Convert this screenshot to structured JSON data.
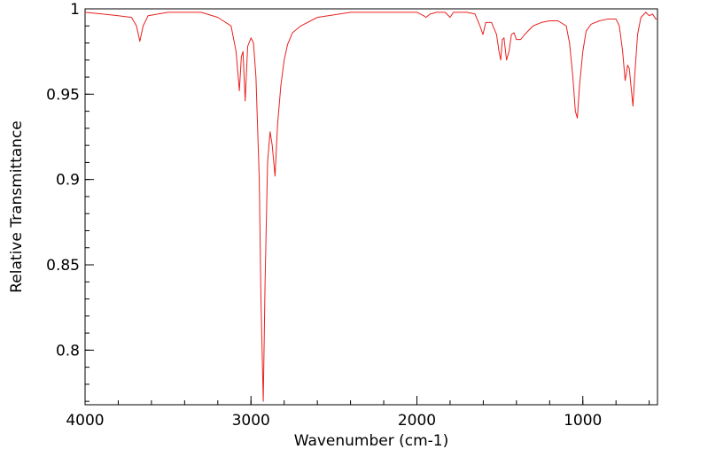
{
  "chart_data": {
    "type": "line",
    "title": "",
    "xlabel": "Wavenumber (cm-1)",
    "ylabel": "Relative Transmittance",
    "xlim": [
      4000,
      550
    ],
    "ylim": [
      0.768,
      1.0
    ],
    "x_reversed": true,
    "grid": false,
    "legend": "none",
    "x_ticks": [
      {
        "value": 4000,
        "label": "4000"
      },
      {
        "value": 3000,
        "label": "3000"
      },
      {
        "value": 2000,
        "label": "2000"
      },
      {
        "value": 1000,
        "label": "1000"
      }
    ],
    "y_ticks": [
      {
        "value": 1.0,
        "label": "1"
      },
      {
        "value": 0.95,
        "label": "0.95"
      },
      {
        "value": 0.9,
        "label": "0.9"
      },
      {
        "value": 0.85,
        "label": "0.85"
      },
      {
        "value": 0.8,
        "label": "0.8"
      }
    ],
    "x_minor_step": 200,
    "y_minor_step": 0.01,
    "line_color": "#e8211f",
    "axis_color": "#000000",
    "series": [
      {
        "name": "",
        "points": [
          [
            4000,
            0.998
          ],
          [
            3900,
            0.997
          ],
          [
            3800,
            0.996
          ],
          [
            3720,
            0.995
          ],
          [
            3690,
            0.99
          ],
          [
            3670,
            0.981
          ],
          [
            3650,
            0.99
          ],
          [
            3620,
            0.996
          ],
          [
            3500,
            0.998
          ],
          [
            3300,
            0.998
          ],
          [
            3200,
            0.995
          ],
          [
            3120,
            0.99
          ],
          [
            3090,
            0.975
          ],
          [
            3070,
            0.952
          ],
          [
            3058,
            0.972
          ],
          [
            3048,
            0.975
          ],
          [
            3035,
            0.946
          ],
          [
            3020,
            0.978
          ],
          [
            3000,
            0.983
          ],
          [
            2985,
            0.98
          ],
          [
            2970,
            0.96
          ],
          [
            2950,
            0.9
          ],
          [
            2940,
            0.83
          ],
          [
            2926,
            0.77
          ],
          [
            2915,
            0.84
          ],
          [
            2900,
            0.91
          ],
          [
            2885,
            0.928
          ],
          [
            2872,
            0.92
          ],
          [
            2855,
            0.902
          ],
          [
            2840,
            0.932
          ],
          [
            2820,
            0.955
          ],
          [
            2800,
            0.97
          ],
          [
            2780,
            0.979
          ],
          [
            2750,
            0.986
          ],
          [
            2700,
            0.99
          ],
          [
            2600,
            0.995
          ],
          [
            2400,
            0.998
          ],
          [
            2200,
            0.998
          ],
          [
            2000,
            0.998
          ],
          [
            1960,
            0.996
          ],
          [
            1945,
            0.995
          ],
          [
            1920,
            0.997
          ],
          [
            1880,
            0.998
          ],
          [
            1830,
            0.998
          ],
          [
            1800,
            0.995
          ],
          [
            1780,
            0.998
          ],
          [
            1700,
            0.998
          ],
          [
            1650,
            0.997
          ],
          [
            1620,
            0.99
          ],
          [
            1602,
            0.985
          ],
          [
            1585,
            0.992
          ],
          [
            1550,
            0.992
          ],
          [
            1520,
            0.985
          ],
          [
            1505,
            0.975
          ],
          [
            1495,
            0.97
          ],
          [
            1485,
            0.982
          ],
          [
            1475,
            0.983
          ],
          [
            1460,
            0.97
          ],
          [
            1445,
            0.975
          ],
          [
            1430,
            0.985
          ],
          [
            1415,
            0.986
          ],
          [
            1400,
            0.982
          ],
          [
            1375,
            0.982
          ],
          [
            1350,
            0.985
          ],
          [
            1300,
            0.99
          ],
          [
            1250,
            0.992
          ],
          [
            1200,
            0.993
          ],
          [
            1150,
            0.993
          ],
          [
            1100,
            0.99
          ],
          [
            1080,
            0.98
          ],
          [
            1060,
            0.96
          ],
          [
            1045,
            0.94
          ],
          [
            1033,
            0.936
          ],
          [
            1020,
            0.955
          ],
          [
            1000,
            0.975
          ],
          [
            980,
            0.987
          ],
          [
            950,
            0.991
          ],
          [
            900,
            0.993
          ],
          [
            850,
            0.994
          ],
          [
            800,
            0.994
          ],
          [
            780,
            0.99
          ],
          [
            760,
            0.975
          ],
          [
            745,
            0.958
          ],
          [
            730,
            0.967
          ],
          [
            720,
            0.965
          ],
          [
            710,
            0.955
          ],
          [
            698,
            0.943
          ],
          [
            688,
            0.96
          ],
          [
            670,
            0.985
          ],
          [
            650,
            0.995
          ],
          [
            620,
            0.998
          ],
          [
            600,
            0.996
          ],
          [
            580,
            0.997
          ],
          [
            560,
            0.994
          ],
          [
            550,
            0.994
          ]
        ]
      }
    ]
  }
}
